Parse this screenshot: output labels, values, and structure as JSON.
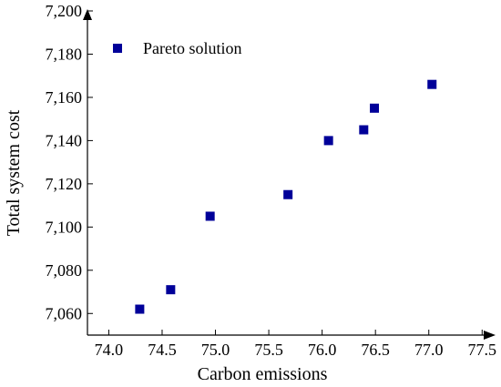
{
  "colors": {
    "marker": "#000099",
    "axis": "#000000",
    "background": "#ffffff"
  },
  "chart_data": {
    "type": "scatter",
    "xlabel": "Carbon emissions",
    "ylabel": "Total system cost",
    "xlim": [
      73.8,
      77.6
    ],
    "ylim": [
      7050,
      7200
    ],
    "xticks": [
      74.0,
      74.5,
      75.0,
      75.5,
      76.0,
      76.5,
      77.0,
      77.5
    ],
    "xtick_labels": [
      "74.0",
      "74.5",
      "75.0",
      "75.5",
      "76.0",
      "76.5",
      "77.0",
      "77.5"
    ],
    "yticks": [
      7060,
      7080,
      7100,
      7120,
      7140,
      7160,
      7180,
      7200
    ],
    "ytick_labels": [
      "7,060",
      "7,080",
      "7,100",
      "7,120",
      "7,140",
      "7,160",
      "7,180",
      "7,200"
    ],
    "grid": false,
    "legend_position": "top-left",
    "series": [
      {
        "name": "Pareto solution",
        "marker": "square",
        "points": [
          {
            "x": 74.29,
            "y": 7062
          },
          {
            "x": 74.58,
            "y": 7071
          },
          {
            "x": 74.95,
            "y": 7105
          },
          {
            "x": 75.68,
            "y": 7115
          },
          {
            "x": 76.06,
            "y": 7140
          },
          {
            "x": 76.39,
            "y": 7145
          },
          {
            "x": 76.49,
            "y": 7155
          },
          {
            "x": 77.03,
            "y": 7166
          }
        ]
      }
    ]
  }
}
